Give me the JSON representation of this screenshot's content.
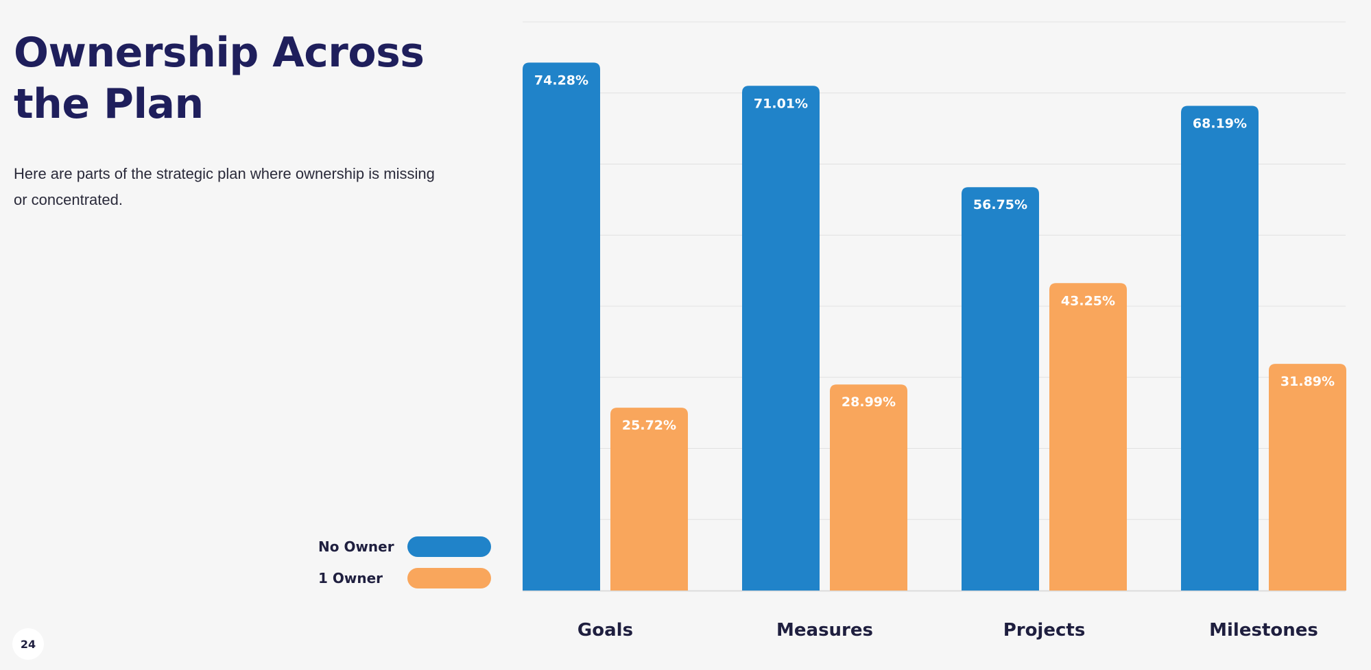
{
  "slide": {
    "title": "Ownership Across the Plan",
    "subtitle": "Here are parts of the strategic plan where ownership is missing or concentrated.",
    "page_number": "24"
  },
  "legend": [
    {
      "label": "No Owner",
      "color": "#2083c9"
    },
    {
      "label": "1 Owner",
      "color": "#f9a65c"
    }
  ],
  "chart_data": {
    "type": "bar",
    "categories": [
      "Goals",
      "Measures",
      "Projects",
      "Milestones"
    ],
    "series": [
      {
        "name": "No Owner",
        "values": [
          74.28,
          71.01,
          56.75,
          68.19
        ],
        "labels": [
          "74.28%",
          "71.01%",
          "56.75%",
          "68.19%"
        ],
        "color": "#2083c9"
      },
      {
        "name": "1 Owner",
        "values": [
          25.72,
          28.99,
          43.25,
          31.89
        ],
        "labels": [
          "25.72%",
          "28.99%",
          "43.25%",
          "31.89%"
        ],
        "color": "#f9a65c"
      }
    ],
    "ylim": [
      0,
      80
    ],
    "grid": true,
    "legend_position": "bottom-left"
  }
}
